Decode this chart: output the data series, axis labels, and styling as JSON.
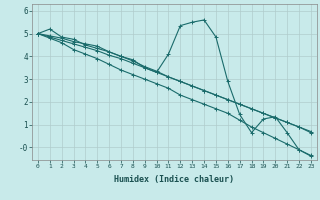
{
  "title": "",
  "xlabel": "Humidex (Indice chaleur)",
  "ylabel": "",
  "bg_color": "#c8eaea",
  "grid_color": "#b0cccc",
  "line_color": "#1a6b6b",
  "x_ticks": [
    0,
    1,
    2,
    3,
    4,
    5,
    6,
    7,
    8,
    9,
    10,
    11,
    12,
    13,
    14,
    15,
    16,
    17,
    18,
    19,
    20,
    21,
    22,
    23
  ],
  "ylim": [
    -0.55,
    6.3
  ],
  "xlim": [
    -0.5,
    23.5
  ],
  "yticks": [
    0,
    1,
    2,
    3,
    4,
    5,
    6
  ],
  "ytick_labels": [
    "-0",
    "1",
    "2",
    "3",
    "4",
    "5",
    "6"
  ],
  "line1_y": [
    5.0,
    5.2,
    4.85,
    4.75,
    4.5,
    4.35,
    4.2,
    4.0,
    3.85,
    3.5,
    3.3,
    4.1,
    5.35,
    5.5,
    5.6,
    4.85,
    2.9,
    1.45,
    0.65,
    1.25,
    1.35,
    0.65,
    -0.1,
    -0.35
  ],
  "line2_y": [
    5.0,
    4.85,
    4.7,
    4.55,
    4.4,
    4.25,
    4.05,
    3.9,
    3.7,
    3.5,
    3.3,
    3.1,
    2.9,
    2.7,
    2.5,
    2.3,
    2.1,
    1.9,
    1.7,
    1.5,
    1.3,
    1.1,
    0.9,
    0.7
  ],
  "line3_y": [
    5.0,
    4.9,
    4.8,
    4.65,
    4.55,
    4.45,
    4.2,
    4.0,
    3.8,
    3.55,
    3.35,
    3.1,
    2.9,
    2.7,
    2.5,
    2.3,
    2.1,
    1.9,
    1.7,
    1.5,
    1.3,
    1.1,
    0.9,
    0.65
  ],
  "line4_y": [
    5.0,
    4.8,
    4.6,
    4.3,
    4.1,
    3.9,
    3.65,
    3.4,
    3.2,
    3.0,
    2.8,
    2.6,
    2.3,
    2.1,
    1.9,
    1.7,
    1.5,
    1.2,
    0.9,
    0.65,
    0.4,
    0.15,
    -0.1,
    -0.38
  ],
  "marker_size": 3,
  "line_width": 0.8
}
